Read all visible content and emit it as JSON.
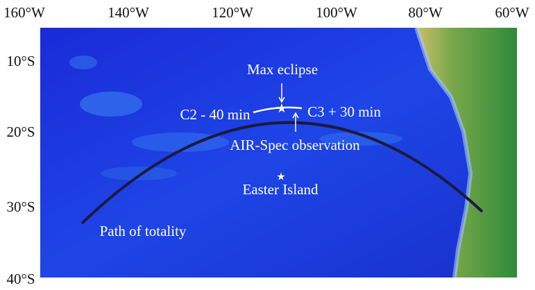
{
  "map": {
    "lon_labels": [
      "160°W",
      "140°W",
      "120°W",
      "100°W",
      "80°W",
      "60°W"
    ],
    "lat_labels": [
      "10°S",
      "20°S",
      "30°S",
      "40°S"
    ],
    "annotations": {
      "max_eclipse": "Max eclipse",
      "c2": "C2 - 40 min",
      "c3": "C3 + 30 min",
      "airspec": "AIR-Spec observation",
      "easter": "Easter Island",
      "path": "Path of totality"
    }
  }
}
